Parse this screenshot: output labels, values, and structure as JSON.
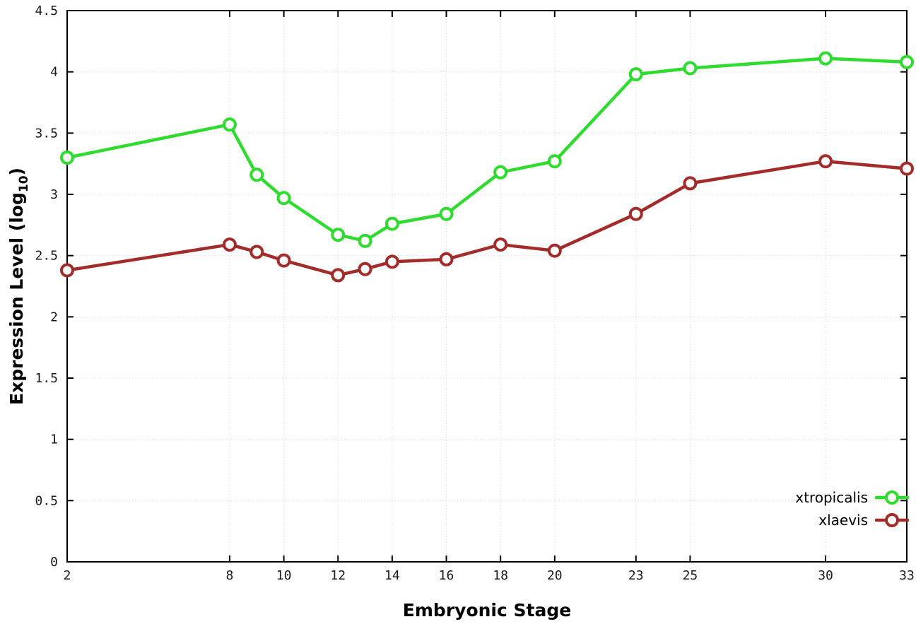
{
  "chart_data": {
    "type": "line",
    "title": "",
    "xlabel": "Embryonic Stage",
    "ylabel_prefix": "Expression Level (log",
    "ylabel_sub": "10",
    "ylabel_suffix": ")",
    "xlim": [
      2,
      33
    ],
    "ylim": [
      0,
      4.5
    ],
    "grid": true,
    "legend_position": "bottom-right",
    "x": [
      2,
      8,
      9,
      10,
      12,
      13,
      14,
      16,
      18,
      20,
      23,
      25,
      30,
      33
    ],
    "xticks": [
      2,
      8,
      10,
      12,
      14,
      16,
      18,
      20,
      23,
      25,
      30,
      33
    ],
    "xtick_labels": [
      "2",
      "8",
      "10",
      "12",
      "14",
      "16",
      "18",
      "20",
      "23",
      "25",
      "30",
      "33"
    ],
    "yticks": [
      0,
      0.5,
      1,
      1.5,
      2,
      2.5,
      3,
      3.5,
      4,
      4.5
    ],
    "ytick_labels": [
      "0",
      "0.5",
      "1",
      "1.5",
      "2",
      "2.5",
      "3",
      "3.5",
      "4",
      "4.5"
    ],
    "marker": "open-circle",
    "series": [
      {
        "name": "xtropicalis",
        "color": "#2edb2e",
        "values": [
          3.3,
          3.57,
          3.16,
          2.97,
          2.67,
          2.62,
          2.76,
          2.84,
          3.18,
          3.27,
          3.98,
          4.03,
          4.11,
          4.08
        ]
      },
      {
        "name": "xlaevis",
        "color": "#a22c2a",
        "values": [
          2.38,
          2.59,
          2.53,
          2.46,
          2.34,
          2.39,
          2.45,
          2.47,
          2.59,
          2.54,
          2.84,
          3.09,
          3.27,
          3.21
        ]
      }
    ],
    "colors": {
      "grid": "#d4d4d4",
      "border": "#000000",
      "background": "#ffffff"
    }
  }
}
